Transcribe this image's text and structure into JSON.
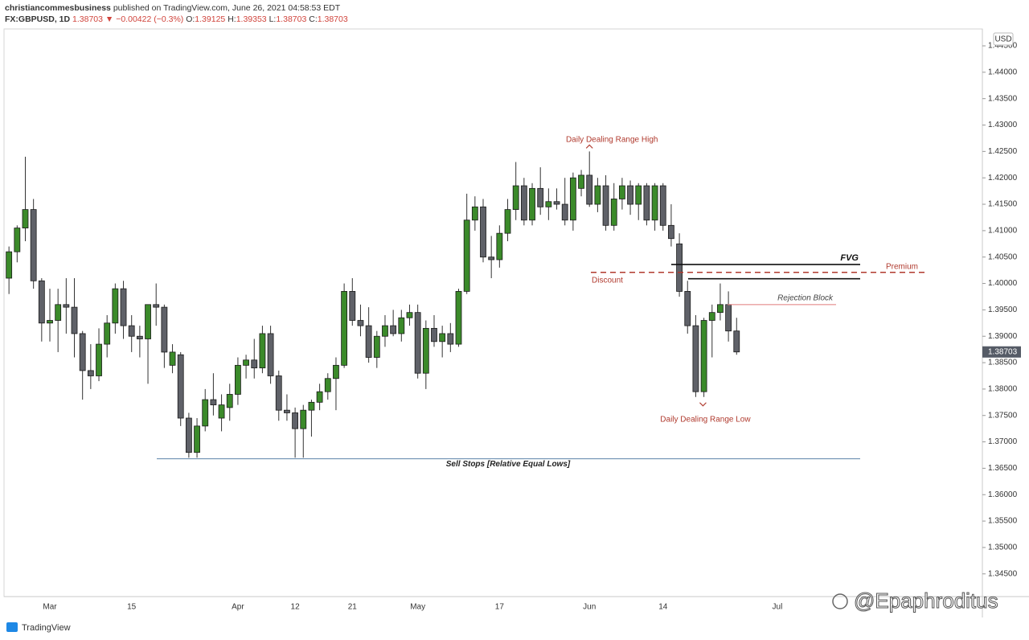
{
  "header": {
    "author": "christiancommesbusiness",
    "published": "published on TradingView.com, June 26, 2021 04:58:53 EDT",
    "symbol": "FX:GBPUSD, 1D",
    "price": "1.38703",
    "change": "▼ −0.00422 (−0.3%)",
    "ohlc": [
      {
        "key": "O:",
        "value": "1.39125"
      },
      {
        "key": "H:",
        "value": "1.39353"
      },
      {
        "key": "L:",
        "value": "1.38703"
      },
      {
        "key": "C:",
        "value": "1.38703"
      }
    ]
  },
  "chart_data": {
    "type": "candlestick",
    "currency": "USD",
    "categories": [
      null,
      null,
      null,
      null,
      null,
      "Mar",
      null,
      null,
      null,
      null,
      null,
      null,
      null,
      null,
      null,
      "15",
      null,
      null,
      null,
      null,
      null,
      null,
      null,
      null,
      null,
      null,
      null,
      null,
      "Apr",
      null,
      null,
      null,
      null,
      null,
      null,
      "12",
      null,
      null,
      null,
      null,
      null,
      null,
      "21",
      null,
      null,
      null,
      null,
      null,
      null,
      null,
      "May",
      null,
      null,
      null,
      null,
      null,
      null,
      null,
      null,
      null,
      "17",
      null,
      null,
      null,
      null,
      null,
      null,
      null,
      null,
      null,
      null,
      "Jun",
      null,
      null,
      null,
      null,
      null,
      null,
      null,
      null,
      "14",
      null,
      null,
      null,
      null,
      null,
      null,
      null,
      null,
      null
    ],
    "extra_x_labels": [
      "Jul"
    ],
    "open": [
      1.401,
      1.406,
      1.4105,
      1.414,
      1.4005,
      1.3925,
      1.393,
      1.396,
      1.3955,
      1.3905,
      1.3835,
      1.3825,
      1.3885,
      1.3925,
      1.399,
      1.392,
      1.39,
      1.3895,
      1.396,
      1.3955,
      1.3845,
      1.3865,
      1.3745,
      1.368,
      1.373,
      1.378,
      1.3745,
      1.3765,
      1.379,
      1.3845,
      1.3855,
      1.384,
      1.3905,
      1.3825,
      1.376,
      1.3755,
      1.3725,
      1.376,
      1.3775,
      1.3795,
      1.382,
      1.3845,
      1.3985,
      1.393,
      1.392,
      1.386,
      1.39,
      1.392,
      1.3905,
      1.3935,
      1.3945,
      1.383,
      1.3915,
      1.389,
      1.3905,
      1.3885,
      1.3985,
      1.412,
      1.4145,
      1.405,
      1.4045,
      1.4095,
      1.414,
      1.4185,
      1.412,
      1.418,
      1.4145,
      1.4155,
      1.415,
      1.412,
      1.418,
      1.4205,
      1.415,
      1.4185,
      1.411,
      1.416,
      1.4185,
      1.415,
      1.4185,
      1.412,
      1.4185,
      1.411,
      1.4075,
      1.3985,
      1.392,
      1.3795,
      1.393,
      1.3945,
      1.396,
      1.391
    ],
    "high": [
      1.407,
      1.411,
      1.424,
      1.416,
      1.401,
      1.399,
      1.399,
      1.401,
      1.401,
      1.391,
      1.3885,
      1.3915,
      1.394,
      1.4,
      1.4005,
      1.394,
      1.392,
      1.396,
      1.4,
      1.396,
      1.3885,
      1.387,
      1.3755,
      1.3745,
      1.38,
      1.383,
      1.379,
      1.381,
      1.386,
      1.3865,
      1.3895,
      1.392,
      1.392,
      1.3835,
      1.379,
      1.3765,
      1.377,
      1.378,
      1.381,
      1.383,
      1.386,
      1.4,
      1.401,
      1.396,
      1.3955,
      1.391,
      1.394,
      1.395,
      1.395,
      1.396,
      1.396,
      1.393,
      1.394,
      1.392,
      1.3925,
      1.399,
      1.417,
      1.4165,
      1.416,
      1.409,
      1.411,
      1.416,
      1.423,
      1.42,
      1.419,
      1.422,
      1.418,
      1.418,
      1.42,
      1.421,
      1.4215,
      1.425,
      1.42,
      1.4205,
      1.419,
      1.42,
      1.4195,
      1.419,
      1.419,
      1.419,
      1.419,
      1.415,
      1.4095,
      1.4005,
      1.394,
      1.3935,
      1.396,
      1.4,
      1.3985,
      1.3935
    ],
    "low": [
      1.398,
      1.404,
      1.408,
      1.399,
      1.389,
      1.389,
      1.387,
      1.3905,
      1.386,
      1.378,
      1.38,
      1.3815,
      1.386,
      1.3905,
      1.3895,
      1.387,
      1.386,
      1.381,
      1.392,
      1.384,
      1.383,
      1.373,
      1.367,
      1.367,
      1.372,
      1.375,
      1.372,
      1.374,
      1.377,
      1.382,
      1.382,
      1.383,
      1.381,
      1.374,
      1.374,
      1.367,
      1.367,
      1.371,
      1.376,
      1.378,
      1.376,
      1.384,
      1.392,
      1.39,
      1.385,
      1.384,
      1.388,
      1.39,
      1.389,
      1.392,
      1.382,
      1.38,
      1.388,
      1.386,
      1.387,
      1.388,
      1.398,
      1.41,
      1.404,
      1.401,
      1.403,
      1.408,
      1.412,
      1.411,
      1.411,
      1.413,
      1.412,
      1.414,
      1.411,
      1.41,
      1.4165,
      1.4145,
      1.4135,
      1.41,
      1.41,
      1.414,
      1.413,
      1.412,
      1.411,
      1.41,
      1.41,
      1.407,
      1.3975,
      1.3905,
      1.3785,
      1.3785,
      1.386,
      1.393,
      1.389,
      1.3865
    ],
    "close": [
      1.406,
      1.4105,
      1.414,
      1.4005,
      1.3925,
      1.393,
      1.396,
      1.3955,
      1.3905,
      1.3835,
      1.3825,
      1.3885,
      1.3925,
      1.399,
      1.392,
      1.39,
      1.3895,
      1.396,
      1.3955,
      1.387,
      1.387,
      1.3745,
      1.368,
      1.373,
      1.378,
      1.377,
      1.377,
      1.379,
      1.3845,
      1.3855,
      1.384,
      1.3905,
      1.3825,
      1.376,
      1.3755,
      1.3725,
      1.376,
      1.3775,
      1.3795,
      1.382,
      1.3845,
      1.3985,
      1.393,
      1.392,
      1.386,
      1.39,
      1.392,
      1.3905,
      1.3935,
      1.3945,
      1.383,
      1.3915,
      1.389,
      1.3905,
      1.3885,
      1.3985,
      1.412,
      1.4145,
      1.405,
      1.4045,
      1.4095,
      1.414,
      1.4185,
      1.412,
      1.418,
      1.4145,
      1.4155,
      1.415,
      1.412,
      1.42,
      1.4205,
      1.415,
      1.4185,
      1.411,
      1.416,
      1.4185,
      1.415,
      1.4185,
      1.412,
      1.4185,
      1.411,
      1.4085,
      1.3985,
      1.392,
      1.3795,
      1.393,
      1.3945,
      1.396,
      1.391,
      1.38703
    ],
    "up_color": "#3b8a2a",
    "down_color": "#5f6168",
    "ylim": [
      1.3407,
      1.4482
    ],
    "yticks": [
      {
        "value": 1.345,
        "label": "1.34500"
      },
      {
        "value": 1.35,
        "label": "1.35000"
      },
      {
        "value": 1.355,
        "label": "1.35500"
      },
      {
        "value": 1.36,
        "label": "1.36000"
      },
      {
        "value": 1.365,
        "label": "1.36500"
      },
      {
        "value": 1.37,
        "label": "1.37000"
      },
      {
        "value": 1.375,
        "label": "1.37500"
      },
      {
        "value": 1.38,
        "label": "1.38000"
      },
      {
        "value": 1.385,
        "label": "1.38500"
      },
      {
        "value": 1.39,
        "label": "1.39000"
      },
      {
        "value": 1.395,
        "label": "1.39500"
      },
      {
        "value": 1.4,
        "label": "1.40000"
      },
      {
        "value": 1.405,
        "label": "1.40500"
      },
      {
        "value": 1.41,
        "label": "1.41000"
      },
      {
        "value": 1.415,
        "label": "1.41500"
      },
      {
        "value": 1.42,
        "label": "1.42000"
      },
      {
        "value": 1.425,
        "label": "1.42500"
      },
      {
        "value": 1.43,
        "label": "1.43000"
      },
      {
        "value": 1.435,
        "label": "1.43500"
      },
      {
        "value": 1.44,
        "label": "1.44000"
      },
      {
        "value": 1.445,
        "label": "1.44500"
      }
    ],
    "grid": false,
    "annotations": {
      "high_label": "Daily Dealing Range High",
      "low_label": "Daily Dealing Range Low",
      "fvg": {
        "text": "FVG",
        "upper": 1.4036,
        "lower": 1.4009
      },
      "equilibrium": {
        "above": "Premium",
        "below": "Discount",
        "value": 1.4021
      },
      "rejection_block": {
        "text": "Rejection Block",
        "value": 1.396
      },
      "sell_stops": {
        "text": "Sell Stops [Relative Equal Lows]",
        "value": 1.3668
      }
    }
  },
  "footer": {
    "brand": "TradingView",
    "watermark": "@Epaphroditus"
  }
}
